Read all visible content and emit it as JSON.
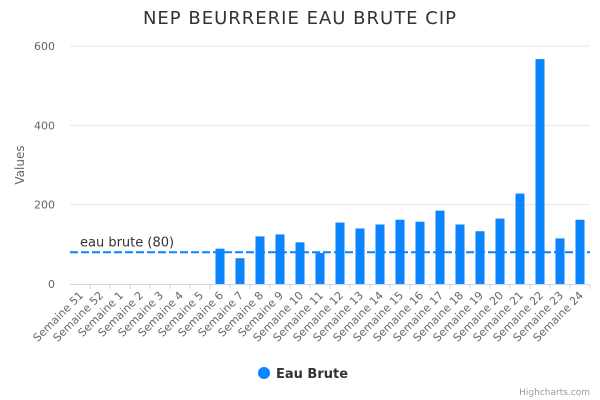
{
  "chart_data": {
    "type": "bar",
    "title": "NEP BEURRERIE EAU BRUTE CIP",
    "ylabel": "Values",
    "ylim": [
      0,
      600
    ],
    "yticks": [
      0,
      200,
      400,
      600
    ],
    "grid": true,
    "categories": [
      "Semaine 51",
      "Semaine 52",
      "Semaine 1",
      "Semaine 2",
      "Semaine 3",
      "Semaine 4",
      "Semaine 5",
      "Semaine 6",
      "Semaine 7",
      "Semaine 8",
      "Semaine 9",
      "Semaine 10",
      "Semaine 11",
      "Semaine 12",
      "Semaine 13",
      "Semaine 14",
      "Semaine 15",
      "Semaine 16",
      "Semaine 17",
      "Semaine 18",
      "Semaine 19",
      "Semaine 20",
      "Semaine 21",
      "Semaine 22",
      "Semaine 23",
      "Semaine 24"
    ],
    "series": [
      {
        "name": "Eau Brute",
        "color": "#0a84ff",
        "values": [
          0,
          0,
          0,
          0,
          0,
          0,
          0,
          89,
          65,
          120,
          125,
          105,
          78,
          155,
          140,
          150,
          162,
          157,
          185,
          150,
          133,
          165,
          228,
          567,
          115,
          162
        ]
      }
    ],
    "plot_line": {
      "value": 80,
      "label": "eau brute (80)",
      "color": "#0a84ff",
      "style": "dashed"
    },
    "legend": {
      "position": "bottom-center"
    },
    "credits": "Highcharts.com"
  }
}
